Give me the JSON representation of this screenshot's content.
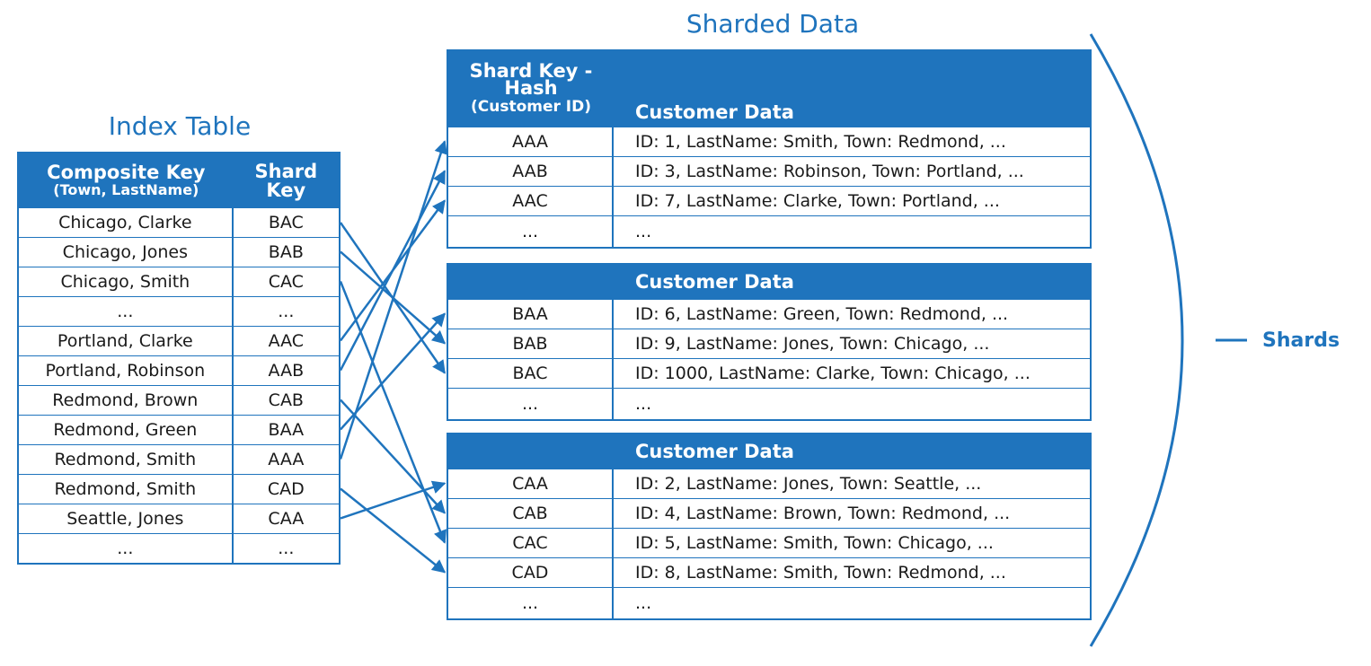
{
  "index_title": "Index Table",
  "sharded_title": "Sharded Data",
  "shards_label": "Shards",
  "colors": {
    "accent": "#1f74bd"
  },
  "index_table": {
    "header_composite": "Composite Key",
    "header_composite_sub": "(Town, LastName)",
    "header_shard_line1": "Shard",
    "header_shard_line2": "Key",
    "rows": [
      {
        "composite": "Chicago, Clarke",
        "shard": "BAC"
      },
      {
        "composite": "Chicago, Jones",
        "shard": "BAB"
      },
      {
        "composite": "Chicago, Smith",
        "shard": "CAC"
      },
      {
        "composite": "...",
        "shard": "..."
      },
      {
        "composite": "Portland, Clarke",
        "shard": "AAC"
      },
      {
        "composite": "Portland, Robinson",
        "shard": "AAB"
      },
      {
        "composite": "Redmond, Brown",
        "shard": "CAB"
      },
      {
        "composite": "Redmond, Green",
        "shard": "BAA"
      },
      {
        "composite": "Redmond, Smith",
        "shard": "AAA"
      },
      {
        "composite": "Redmond, Smith",
        "shard": "CAD"
      },
      {
        "composite": "Seattle, Jones",
        "shard": "CAA"
      },
      {
        "composite": "...",
        "shard": "..."
      }
    ]
  },
  "shards": [
    {
      "key_header_line1": "Shard Key -",
      "key_header_line2": "Hash",
      "key_header_line3": "(Customer ID)",
      "data_header": "Customer Data",
      "rows": [
        {
          "key": "AAA",
          "data": "ID: 1, LastName: Smith, Town: Redmond, ..."
        },
        {
          "key": "AAB",
          "data": "ID: 3, LastName: Robinson, Town: Portland, ..."
        },
        {
          "key": "AAC",
          "data": "ID: 7, LastName: Clarke, Town: Portland, ..."
        },
        {
          "key": "...",
          "data": "..."
        }
      ]
    },
    {
      "data_header": "Customer Data",
      "rows": [
        {
          "key": "BAA",
          "data": "ID: 6, LastName: Green, Town: Redmond, ..."
        },
        {
          "key": "BAB",
          "data": "ID: 9, LastName: Jones, Town: Chicago, ..."
        },
        {
          "key": "BAC",
          "data": "ID: 1000, LastName: Clarke, Town: Chicago, ..."
        },
        {
          "key": "...",
          "data": "..."
        }
      ]
    },
    {
      "data_header": "Customer Data",
      "rows": [
        {
          "key": "CAA",
          "data": "ID: 2, LastName: Jones, Town: Seattle, ..."
        },
        {
          "key": "CAB",
          "data": "ID: 4, LastName: Brown, Town: Redmond, ..."
        },
        {
          "key": "CAC",
          "data": "ID: 5, LastName: Smith, Town: Chicago, ..."
        },
        {
          "key": "CAD",
          "data": "ID: 8, LastName: Smith, Town: Redmond, ..."
        },
        {
          "key": "...",
          "data": "..."
        }
      ]
    }
  ]
}
